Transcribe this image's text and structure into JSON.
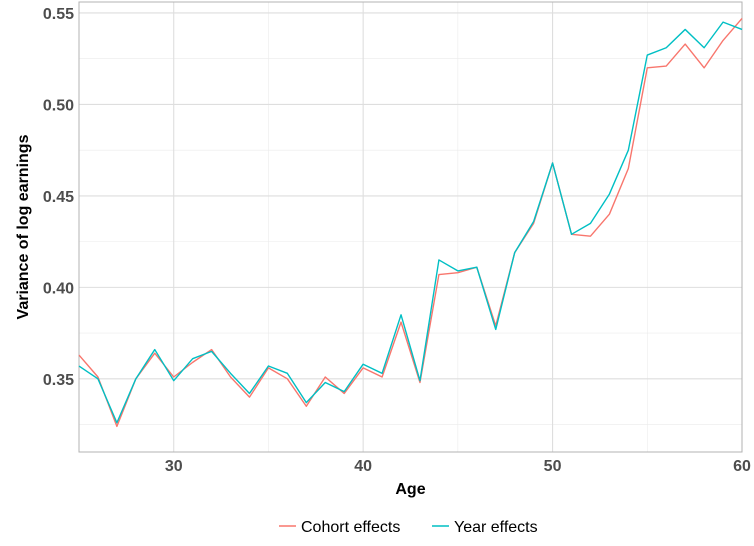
{
  "chart_data": {
    "type": "line",
    "title": "",
    "xlabel": "Age",
    "ylabel": "Variance of log earnings",
    "xlim": [
      25,
      60
    ],
    "ylim": [
      0.31,
      0.556
    ],
    "x_ticks": [
      30,
      40,
      50,
      60
    ],
    "y_ticks": [
      0.35,
      0.4,
      0.45,
      0.5,
      0.55
    ],
    "x_tick_labels": [
      "30",
      "40",
      "50",
      "60"
    ],
    "y_tick_labels": [
      "0.35",
      "0.40",
      "0.45",
      "0.50",
      "0.55"
    ],
    "grid": true,
    "legend_position": "bottom",
    "x": [
      25,
      26,
      27,
      28,
      29,
      30,
      31,
      32,
      33,
      34,
      35,
      36,
      37,
      38,
      39,
      40,
      41,
      42,
      43,
      44,
      45,
      46,
      47,
      48,
      49,
      50,
      51,
      52,
      53,
      54,
      55,
      56,
      57,
      58,
      59,
      60
    ],
    "series": [
      {
        "name": "Cohort effects",
        "color": "#F8766D",
        "values": [
          0.363,
          0.351,
          0.324,
          0.35,
          0.364,
          0.351,
          0.359,
          0.366,
          0.351,
          0.34,
          0.356,
          0.35,
          0.335,
          0.351,
          0.342,
          0.356,
          0.351,
          0.381,
          0.348,
          0.407,
          0.408,
          0.411,
          0.379,
          0.419,
          0.435,
          0.468,
          0.429,
          0.428,
          0.44,
          0.465,
          0.52,
          0.521,
          0.533,
          0.52,
          0.535,
          0.547
        ]
      },
      {
        "name": "Year effects",
        "color": "#00BFC4",
        "values": [
          0.357,
          0.35,
          0.326,
          0.35,
          0.366,
          0.349,
          0.361,
          0.365,
          0.353,
          0.342,
          0.357,
          0.353,
          0.337,
          0.348,
          0.343,
          0.358,
          0.353,
          0.385,
          0.349,
          0.415,
          0.409,
          0.411,
          0.377,
          0.419,
          0.436,
          0.468,
          0.429,
          0.435,
          0.451,
          0.475,
          0.527,
          0.531,
          0.541,
          0.531,
          0.545,
          0.541
        ]
      }
    ]
  }
}
